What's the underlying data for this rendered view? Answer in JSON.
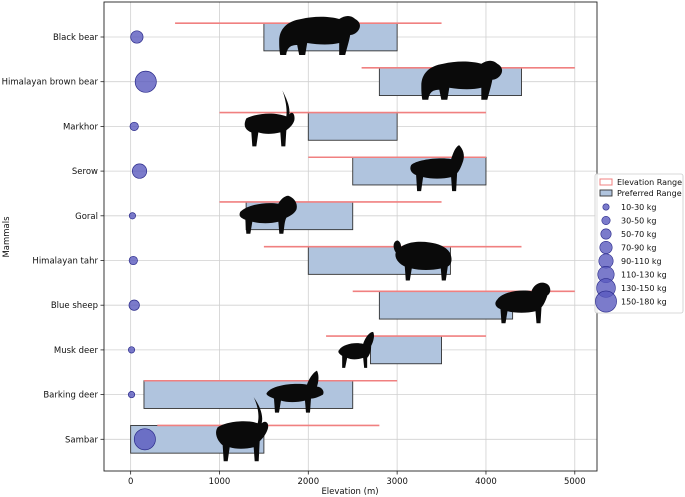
{
  "chart_data": {
    "type": "bar",
    "orientation": "horizontal",
    "title": "",
    "xlabel": "Elevation (m)",
    "ylabel": "Mammals",
    "xlim": [
      -300,
      5250
    ],
    "xticks": [
      0,
      1000,
      2000,
      3000,
      4000,
      5000
    ],
    "grid": true,
    "legend_position": "right",
    "colors": {
      "elevation_range": "#f08080",
      "preferred_fill": "#b0c4de",
      "preferred_edge": "#333333",
      "bubble": "#5a5abe"
    },
    "categories": [
      "Black bear",
      "Himalayan brown bear",
      "Markhor",
      "Serow",
      "Goral",
      "Himalayan tahr",
      "Blue sheep",
      "Musk deer",
      "Barking deer",
      "Sambar"
    ],
    "series": [
      {
        "name": "Elevation Range",
        "ranges": [
          [
            500,
            3500
          ],
          [
            2600,
            5000
          ],
          [
            1000,
            4000
          ],
          [
            2000,
            4000
          ],
          [
            1000,
            3500
          ],
          [
            1500,
            4400
          ],
          [
            2500,
            5000
          ],
          [
            2200,
            4000
          ],
          [
            150,
            3000
          ],
          [
            300,
            2800
          ]
        ]
      },
      {
        "name": "Preferred Range",
        "ranges": [
          [
            1500,
            3000
          ],
          [
            2800,
            4400
          ],
          [
            2000,
            3000
          ],
          [
            2500,
            4000
          ],
          [
            1300,
            2500
          ],
          [
            2000,
            3600
          ],
          [
            2800,
            4300
          ],
          [
            2700,
            3500
          ],
          [
            150,
            2500
          ],
          [
            0,
            1500
          ]
        ]
      }
    ],
    "weight_class": [
      "70-90 kg",
      "150-180 kg",
      "30-50 kg",
      "90-110 kg",
      "10-30 kg",
      "30-50 kg",
      "50-70 kg",
      "10-30 kg",
      "10-30 kg",
      "150-180 kg"
    ],
    "bubble_x": [
      70,
      170,
      40,
      100,
      20,
      30,
      40,
      10,
      10,
      160
    ],
    "silhouettes": [
      "bear",
      "bear",
      "markhor",
      "serow",
      "goral",
      "tahr",
      "bluesheep",
      "muskdeer",
      "barkingdeer",
      "sambar"
    ],
    "silhouette_x": [
      2100,
      3700,
      1550,
      3450,
      1550,
      3300,
      4400,
      2550,
      1850,
      1250
    ],
    "legend": {
      "entries": [
        "Elevation Range",
        "Preferred Range"
      ],
      "size_entries": [
        "10-30 kg",
        "30-50 kg",
        "50-70 kg",
        "70-90 kg",
        "90-110 kg",
        "110-130 kg",
        "130-150 kg",
        "150-180 kg"
      ]
    }
  }
}
